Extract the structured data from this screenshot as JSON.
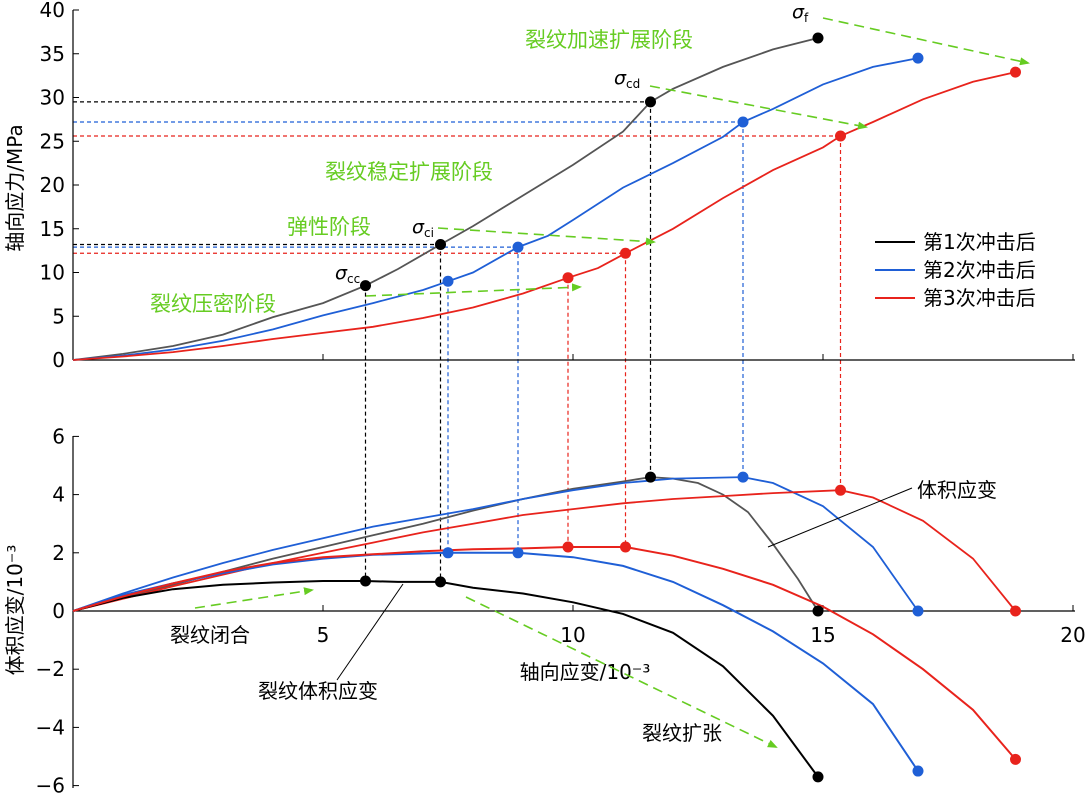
{
  "chart_data": [
    {
      "type": "line",
      "ylabel": "轴向应力/MPa",
      "xlim": [
        0,
        20
      ],
      "ylim": [
        0,
        40
      ],
      "yticks": [
        0,
        5,
        10,
        15,
        20,
        25,
        30,
        35,
        40
      ],
      "series": [
        {
          "name": "第1次冲击后",
          "color": "#000000",
          "points": [
            [
              0,
              0
            ],
            [
              1,
              0.7
            ],
            [
              2,
              1.6
            ],
            [
              3,
              2.9
            ],
            [
              4,
              4.9
            ],
            [
              5,
              6.5
            ],
            [
              5.85,
              8.5
            ],
            [
              6.5,
              10.4
            ],
            [
              7.35,
              13.2
            ],
            [
              8,
              15.3
            ],
            [
              9,
              18.8
            ],
            [
              10,
              22.3
            ],
            [
              11,
              26.1
            ],
            [
              11.55,
              29.5
            ],
            [
              12,
              31
            ],
            [
              13,
              33.5
            ],
            [
              14,
              35.5
            ],
            [
              14.9,
              36.8
            ]
          ],
          "markers": [
            [
              5.85,
              8.5
            ],
            [
              7.35,
              13.2
            ],
            [
              11.55,
              29.5
            ],
            [
              14.9,
              36.8
            ]
          ]
        },
        {
          "name": "第2次冲击后",
          "color": "#1f5fd6",
          "points": [
            [
              0,
              0
            ],
            [
              1,
              0.5
            ],
            [
              2,
              1.2
            ],
            [
              3,
              2.2
            ],
            [
              4,
              3.5
            ],
            [
              5,
              5.1
            ],
            [
              6,
              6.5
            ],
            [
              7,
              8
            ],
            [
              7.5,
              9
            ],
            [
              8,
              10
            ],
            [
              8.9,
              12.9
            ],
            [
              9.5,
              14.2
            ],
            [
              10,
              16
            ],
            [
              11,
              19.7
            ],
            [
              12,
              22.5
            ],
            [
              13,
              25.5
            ],
            [
              13.4,
              27.2
            ],
            [
              14,
              28.7
            ],
            [
              15,
              31.5
            ],
            [
              16,
              33.5
            ],
            [
              16.9,
              34.5
            ]
          ],
          "markers": [
            [
              7.5,
              9
            ],
            [
              8.9,
              12.9
            ],
            [
              13.4,
              27.2
            ],
            [
              16.9,
              34.5
            ]
          ]
        },
        {
          "name": "第3次冲击后",
          "color": "#e8231c",
          "points": [
            [
              0,
              0
            ],
            [
              1,
              0.4
            ],
            [
              2,
              0.9
            ],
            [
              3,
              1.6
            ],
            [
              4,
              2.4
            ],
            [
              5,
              3.1
            ],
            [
              6,
              3.8
            ],
            [
              7,
              4.8
            ],
            [
              8,
              6
            ],
            [
              9,
              7.6
            ],
            [
              9.9,
              9.4
            ],
            [
              10.5,
              10.5
            ],
            [
              11.05,
              12.2
            ],
            [
              12,
              15
            ],
            [
              13,
              18.5
            ],
            [
              14,
              21.7
            ],
            [
              15,
              24.3
            ],
            [
              15.35,
              25.6
            ],
            [
              16,
              27.2
            ],
            [
              17,
              29.8
            ],
            [
              18,
              31.8
            ],
            [
              18.85,
              32.9
            ]
          ],
          "markers": [
            [
              9.9,
              9.4
            ],
            [
              11.05,
              12.2
            ],
            [
              15.35,
              25.6
            ],
            [
              18.85,
              32.9
            ]
          ]
        }
      ],
      "point_labels": [
        "σ_cc",
        "σ_ci",
        "σ_cd",
        "σ_f"
      ],
      "stage_annotations": [
        "裂纹压密阶段",
        "弹性阶段",
        "裂纹稳定扩展阶段",
        "裂纹加速扩展阶段"
      ],
      "legend": "right"
    },
    {
      "type": "line",
      "xlabel": "轴向应变/10⁻³",
      "ylabel": "体积应变/10⁻³",
      "xlim": [
        0,
        20
      ],
      "ylim": [
        -6,
        6
      ],
      "xticks": [
        5,
        10,
        15,
        20
      ],
      "yticks": [
        -6,
        -4,
        -2,
        0,
        2,
        4,
        6
      ],
      "volumetric_series": [
        {
          "name": "第1次冲击后",
          "color": "#555555",
          "points": [
            [
              0,
              0
            ],
            [
              1,
              0.45
            ],
            [
              2,
              0.9
            ],
            [
              3,
              1.35
            ],
            [
              4,
              1.8
            ],
            [
              5,
              2.2
            ],
            [
              6,
              2.6
            ],
            [
              7,
              3.0
            ],
            [
              8,
              3.45
            ],
            [
              9,
              3.85
            ],
            [
              10,
              4.2
            ],
            [
              11,
              4.45
            ],
            [
              11.55,
              4.6
            ],
            [
              12,
              4.55
            ],
            [
              12.5,
              4.4
            ],
            [
              13,
              4
            ],
            [
              13.5,
              3.4
            ],
            [
              14,
              2.3
            ],
            [
              14.5,
              1.1
            ],
            [
              14.9,
              0
            ]
          ],
          "markers": [
            [
              11.55,
              4.6
            ],
            [
              14.9,
              0
            ]
          ]
        },
        {
          "name": "第2次冲击后",
          "color": "#1f5fd6",
          "points": [
            [
              0,
              0
            ],
            [
              1,
              0.6
            ],
            [
              2,
              1.15
            ],
            [
              3,
              1.65
            ],
            [
              4,
              2.1
            ],
            [
              5,
              2.5
            ],
            [
              6,
              2.9
            ],
            [
              7,
              3.2
            ],
            [
              8,
              3.5
            ],
            [
              9,
              3.85
            ],
            [
              10,
              4.15
            ],
            [
              11,
              4.4
            ],
            [
              12,
              4.55
            ],
            [
              13.4,
              4.6
            ],
            [
              14,
              4.4
            ],
            [
              15,
              3.6
            ],
            [
              16,
              2.2
            ],
            [
              16.9,
              0
            ]
          ],
          "markers": [
            [
              13.4,
              4.6
            ],
            [
              16.9,
              0
            ]
          ]
        },
        {
          "name": "第3次冲击后",
          "color": "#e8231c",
          "points": [
            [
              0,
              0
            ],
            [
              1,
              0.42
            ],
            [
              2,
              0.85
            ],
            [
              3,
              1.25
            ],
            [
              4,
              1.65
            ],
            [
              5,
              2.0
            ],
            [
              6,
              2.35
            ],
            [
              7,
              2.7
            ],
            [
              8,
              3.0
            ],
            [
              9,
              3.3
            ],
            [
              10,
              3.5
            ],
            [
              11,
              3.7
            ],
            [
              12,
              3.85
            ],
            [
              13,
              3.95
            ],
            [
              14,
              4.05
            ],
            [
              15.35,
              4.15
            ],
            [
              16,
              3.9
            ],
            [
              17,
              3.1
            ],
            [
              18,
              1.8
            ],
            [
              18.85,
              0
            ]
          ],
          "markers": [
            [
              15.35,
              4.15
            ],
            [
              18.85,
              0
            ]
          ]
        }
      ],
      "crack_volumetric_series": [
        {
          "name": "第1次冲击后",
          "color": "#000000",
          "points": [
            [
              0,
              0
            ],
            [
              1,
              0.45
            ],
            [
              2,
              0.75
            ],
            [
              3,
              0.9
            ],
            [
              4,
              0.98
            ],
            [
              5,
              1.03
            ],
            [
              5.85,
              1.03
            ],
            [
              6.5,
              1.0
            ],
            [
              7.35,
              1.0
            ],
            [
              8,
              0.8
            ],
            [
              9,
              0.6
            ],
            [
              10,
              0.3
            ],
            [
              11,
              -0.1
            ],
            [
              12,
              -0.75
            ],
            [
              13,
              -1.9
            ],
            [
              14,
              -3.6
            ],
            [
              14.9,
              -5.7
            ]
          ],
          "markers": [
            [
              5.85,
              1.03
            ],
            [
              7.35,
              1.0
            ],
            [
              14.9,
              -5.7
            ]
          ]
        },
        {
          "name": "第2次冲击后",
          "color": "#1f5fd6",
          "points": [
            [
              0,
              0
            ],
            [
              1,
              0.55
            ],
            [
              2,
              0.95
            ],
            [
              3,
              1.3
            ],
            [
              4,
              1.6
            ],
            [
              5,
              1.8
            ],
            [
              6,
              1.93
            ],
            [
              7.5,
              2.0
            ],
            [
              8.9,
              2.0
            ],
            [
              10,
              1.85
            ],
            [
              11,
              1.55
            ],
            [
              12,
              1.0
            ],
            [
              13,
              0.2
            ],
            [
              14,
              -0.7
            ],
            [
              15,
              -1.8
            ],
            [
              16,
              -3.2
            ],
            [
              16.9,
              -5.5
            ]
          ],
          "markers": [
            [
              7.5,
              2.0
            ],
            [
              8.9,
              2.0
            ],
            [
              16.9,
              -5.5
            ]
          ]
        },
        {
          "name": "第3次冲击后",
          "color": "#e8231c",
          "points": [
            [
              0,
              0
            ],
            [
              1,
              0.5
            ],
            [
              2,
              0.95
            ],
            [
              3,
              1.35
            ],
            [
              4,
              1.65
            ],
            [
              5,
              1.85
            ],
            [
              6,
              1.95
            ],
            [
              7,
              2.05
            ],
            [
              8,
              2.12
            ],
            [
              9,
              2.15
            ],
            [
              9.9,
              2.2
            ],
            [
              11.05,
              2.2
            ],
            [
              12,
              1.9
            ],
            [
              13,
              1.45
            ],
            [
              14,
              0.9
            ],
            [
              15,
              0.15
            ],
            [
              16,
              -0.8
            ],
            [
              17,
              -2.0
            ],
            [
              18,
              -3.4
            ],
            [
              18.85,
              -5.1
            ]
          ],
          "markers": [
            [
              9.9,
              2.2
            ],
            [
              11.05,
              2.2
            ],
            [
              18.85,
              -5.1
            ]
          ]
        }
      ],
      "annotations": [
        "裂纹闭合",
        "裂纹体积应变",
        "裂纹扩张",
        "体积应变"
      ]
    }
  ]
}
